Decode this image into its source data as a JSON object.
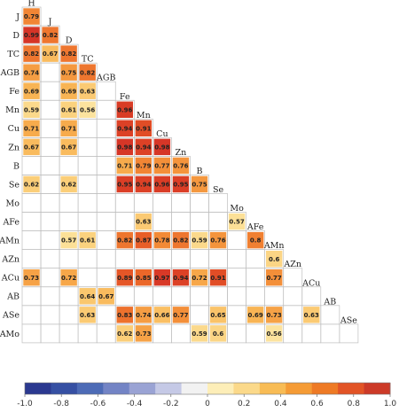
{
  "chart_data": {
    "type": "heatmap",
    "title": "",
    "variables": [
      "H",
      "J",
      "D",
      "TC",
      "AGB",
      "Fe",
      "Mn",
      "Cu",
      "Zn",
      "B",
      "Se",
      "Mo",
      "AFe",
      "AMn",
      "AZn",
      "ACu",
      "AB",
      "ASe",
      "AMo"
    ],
    "row_labels": [
      "J",
      "D",
      "TC",
      "AGB",
      "Fe",
      "Mn",
      "Cu",
      "Zn",
      "B",
      "Se",
      "Mo",
      "AFe",
      "AMn",
      "AZn",
      "ACu",
      "AB",
      "ASe",
      "AMo"
    ],
    "diagonal_labels": [
      "H",
      "J",
      "D",
      "TC",
      "AGB",
      "Fe",
      "Mn",
      "Cu",
      "Zn",
      "B",
      "Se",
      "Mo",
      "AFe",
      "AMn",
      "AZn",
      "ACu",
      "AB",
      "ASe"
    ],
    "cells": [
      {
        "row": "J",
        "col": "H",
        "value": 0.79
      },
      {
        "row": "D",
        "col": "H",
        "value": 0.99
      },
      {
        "row": "D",
        "col": "J",
        "value": 0.82
      },
      {
        "row": "TC",
        "col": "H",
        "value": 0.82
      },
      {
        "row": "TC",
        "col": "J",
        "value": 0.67
      },
      {
        "row": "TC",
        "col": "D",
        "value": 0.82
      },
      {
        "row": "AGB",
        "col": "H",
        "value": 0.74
      },
      {
        "row": "AGB",
        "col": "D",
        "value": 0.75
      },
      {
        "row": "AGB",
        "col": "TC",
        "value": 0.82
      },
      {
        "row": "Fe",
        "col": "H",
        "value": 0.69
      },
      {
        "row": "Fe",
        "col": "D",
        "value": 0.69
      },
      {
        "row": "Fe",
        "col": "TC",
        "value": 0.63
      },
      {
        "row": "Mn",
        "col": "H",
        "value": 0.59
      },
      {
        "row": "Mn",
        "col": "D",
        "value": 0.61
      },
      {
        "row": "Mn",
        "col": "TC",
        "value": 0.56
      },
      {
        "row": "Mn",
        "col": "Fe",
        "value": 0.96
      },
      {
        "row": "Cu",
        "col": "H",
        "value": 0.71
      },
      {
        "row": "Cu",
        "col": "D",
        "value": 0.71
      },
      {
        "row": "Cu",
        "col": "Fe",
        "value": 0.94
      },
      {
        "row": "Cu",
        "col": "Mn",
        "value": 0.91
      },
      {
        "row": "Zn",
        "col": "H",
        "value": 0.67
      },
      {
        "row": "Zn",
        "col": "D",
        "value": 0.67
      },
      {
        "row": "Zn",
        "col": "Fe",
        "value": 0.98
      },
      {
        "row": "Zn",
        "col": "Mn",
        "value": 0.94
      },
      {
        "row": "Zn",
        "col": "Cu",
        "value": 0.98
      },
      {
        "row": "B",
        "col": "Fe",
        "value": 0.71
      },
      {
        "row": "B",
        "col": "Mn",
        "value": 0.79
      },
      {
        "row": "B",
        "col": "Cu",
        "value": 0.77
      },
      {
        "row": "B",
        "col": "Zn",
        "value": 0.76
      },
      {
        "row": "Se",
        "col": "H",
        "value": 0.62
      },
      {
        "row": "Se",
        "col": "D",
        "value": 0.62
      },
      {
        "row": "Se",
        "col": "Fe",
        "value": 0.95
      },
      {
        "row": "Se",
        "col": "Mn",
        "value": 0.94
      },
      {
        "row": "Se",
        "col": "Cu",
        "value": 0.96
      },
      {
        "row": "Se",
        "col": "Zn",
        "value": 0.95
      },
      {
        "row": "Se",
        "col": "B",
        "value": 0.75
      },
      {
        "row": "AFe",
        "col": "Mn",
        "value": 0.63
      },
      {
        "row": "AFe",
        "col": "Mo",
        "value": 0.57
      },
      {
        "row": "AMn",
        "col": "D",
        "value": 0.57
      },
      {
        "row": "AMn",
        "col": "TC",
        "value": 0.61
      },
      {
        "row": "AMn",
        "col": "Fe",
        "value": 0.82
      },
      {
        "row": "AMn",
        "col": "Mn",
        "value": 0.87
      },
      {
        "row": "AMn",
        "col": "Cu",
        "value": 0.78
      },
      {
        "row": "AMn",
        "col": "Zn",
        "value": 0.82
      },
      {
        "row": "AMn",
        "col": "B",
        "value": 0.59
      },
      {
        "row": "AMn",
        "col": "Se",
        "value": 0.76
      },
      {
        "row": "AMn",
        "col": "AFe",
        "value": 0.8
      },
      {
        "row": "AZn",
        "col": "AMn",
        "value": 0.6
      },
      {
        "row": "ACu",
        "col": "H",
        "value": 0.73
      },
      {
        "row": "ACu",
        "col": "D",
        "value": 0.72
      },
      {
        "row": "ACu",
        "col": "Fe",
        "value": 0.89
      },
      {
        "row": "ACu",
        "col": "Mn",
        "value": 0.85
      },
      {
        "row": "ACu",
        "col": "Cu",
        "value": 0.97
      },
      {
        "row": "ACu",
        "col": "Zn",
        "value": 0.94
      },
      {
        "row": "ACu",
        "col": "B",
        "value": 0.72
      },
      {
        "row": "ACu",
        "col": "Se",
        "value": 0.91
      },
      {
        "row": "ACu",
        "col": "AMn",
        "value": 0.77
      },
      {
        "row": "AB",
        "col": "TC",
        "value": 0.64
      },
      {
        "row": "AB",
        "col": "AGB",
        "value": 0.67
      },
      {
        "row": "ASe",
        "col": "TC",
        "value": 0.63
      },
      {
        "row": "ASe",
        "col": "Fe",
        "value": 0.83
      },
      {
        "row": "ASe",
        "col": "Mn",
        "value": 0.74
      },
      {
        "row": "ASe",
        "col": "Cu",
        "value": 0.66
      },
      {
        "row": "ASe",
        "col": "Zn",
        "value": 0.77
      },
      {
        "row": "ASe",
        "col": "Se",
        "value": 0.65
      },
      {
        "row": "ASe",
        "col": "AFe",
        "value": 0.69
      },
      {
        "row": "ASe",
        "col": "AMn",
        "value": 0.73
      },
      {
        "row": "ASe",
        "col": "ACu",
        "value": 0.63
      },
      {
        "row": "AMo",
        "col": "Fe",
        "value": 0.62
      },
      {
        "row": "AMo",
        "col": "Mn",
        "value": 0.73
      },
      {
        "row": "AMo",
        "col": "B",
        "value": 0.59
      },
      {
        "row": "AMo",
        "col": "Se",
        "value": 0.6
      },
      {
        "row": "AMo",
        "col": "AMn",
        "value": 0.56
      }
    ],
    "colorbar": {
      "range": [
        -1.0,
        1.0
      ],
      "ticks": [
        "-1.0",
        "-0.8",
        "-0.6",
        "-0.4",
        "-0.2",
        "0",
        "0.2",
        "0.4",
        "0.6",
        "0.8",
        "1.0"
      ],
      "colors": [
        "#2b3990",
        "#3650a3",
        "#4d6bb6",
        "#7384c5",
        "#9aa3d4",
        "#c5c9e6",
        "#f2f2f2",
        "#fdeeb8",
        "#fbd98a",
        "#f8bc55",
        "#f59b35",
        "#ee7a25",
        "#e25426",
        "#cc3a28"
      ]
    },
    "grid": true
  }
}
